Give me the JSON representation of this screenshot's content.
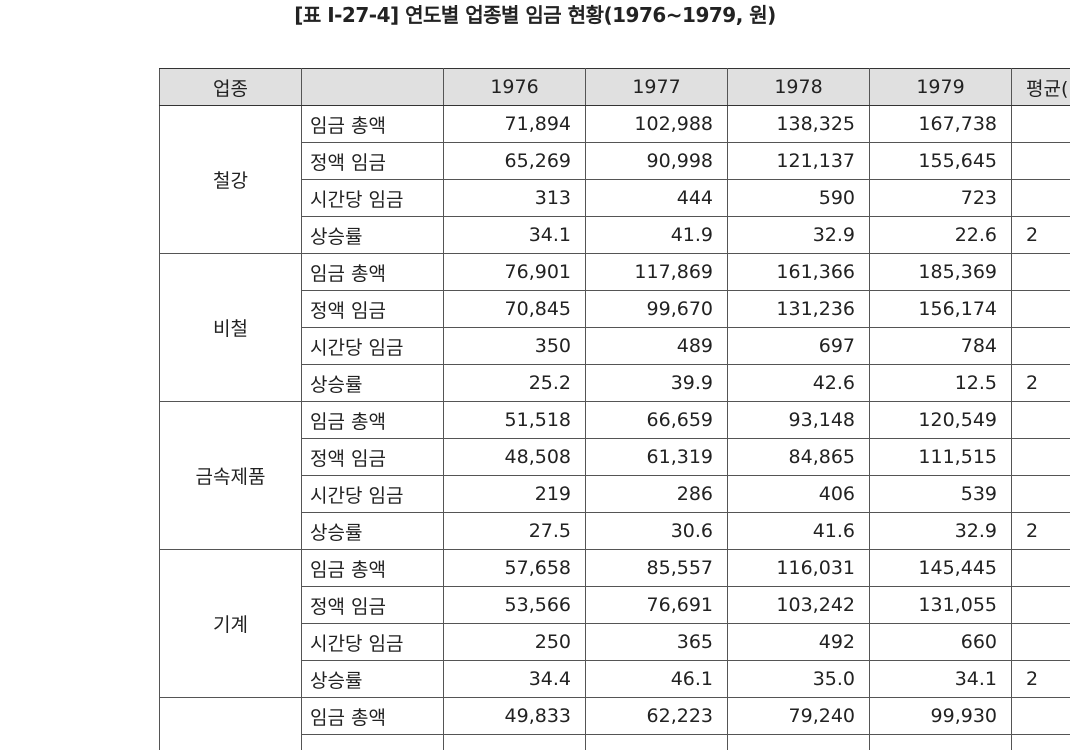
{
  "title": "[표 Ⅰ-27-4] 연도별 업종별 임금 현황(1976~1979, 원)",
  "table": {
    "headers": [
      "업종",
      "",
      "1976",
      "1977",
      "1978",
      "1979",
      "평균("
    ],
    "groups": [
      {
        "industry": "철강",
        "rows": [
          {
            "item": "임금 총액",
            "values": [
              "71,894",
              "102,988",
              "138,325",
              "167,738"
            ],
            "avg": ""
          },
          {
            "item": "정액 임금",
            "values": [
              "65,269",
              "90,998",
              "121,137",
              "155,645"
            ],
            "avg": ""
          },
          {
            "item": "시간당 임금",
            "values": [
              "313",
              "444",
              "590",
              "723"
            ],
            "avg": ""
          },
          {
            "item": "상승률",
            "values": [
              "34.1",
              "41.9",
              "32.9",
              "22.6"
            ],
            "avg": "2"
          }
        ]
      },
      {
        "industry": "비철",
        "rows": [
          {
            "item": "임금 총액",
            "values": [
              "76,901",
              "117,869",
              "161,366",
              "185,369"
            ],
            "avg": ""
          },
          {
            "item": "정액 임금",
            "values": [
              "70,845",
              "99,670",
              "131,236",
              "156,174"
            ],
            "avg": ""
          },
          {
            "item": "시간당 임금",
            "values": [
              "350",
              "489",
              "697",
              "784"
            ],
            "avg": ""
          },
          {
            "item": "상승률",
            "values": [
              "25.2",
              "39.9",
              "42.6",
              "12.5"
            ],
            "avg": "2"
          }
        ]
      },
      {
        "industry": "금속제품",
        "rows": [
          {
            "item": "임금 총액",
            "values": [
              "51,518",
              "66,659",
              "93,148",
              "120,549"
            ],
            "avg": ""
          },
          {
            "item": "정액 임금",
            "values": [
              "48,508",
              "61,319",
              "84,865",
              "111,515"
            ],
            "avg": ""
          },
          {
            "item": "시간당 임금",
            "values": [
              "219",
              "286",
              "406",
              "539"
            ],
            "avg": ""
          },
          {
            "item": "상승률",
            "values": [
              "27.5",
              "30.6",
              "41.6",
              "32.9"
            ],
            "avg": "2"
          }
        ]
      },
      {
        "industry": "기계",
        "rows": [
          {
            "item": "임금 총액",
            "values": [
              "57,658",
              "85,557",
              "116,031",
              "145,445"
            ],
            "avg": ""
          },
          {
            "item": "정액 임금",
            "values": [
              "53,566",
              "76,691",
              "103,242",
              "131,055"
            ],
            "avg": ""
          },
          {
            "item": "시간당 임금",
            "values": [
              "250",
              "365",
              "492",
              "660"
            ],
            "avg": ""
          },
          {
            "item": "상승률",
            "values": [
              "34.4",
              "46.1",
              "35.0",
              "34.1"
            ],
            "avg": "2"
          }
        ]
      },
      {
        "industry": "",
        "rows": [
          {
            "item": "임금 총액",
            "values": [
              "49,833",
              "62,223",
              "79,240",
              "99,930"
            ],
            "avg": ""
          },
          {
            "item": "",
            "values": [
              "",
              "",
              "",
              ""
            ],
            "avg": ""
          }
        ]
      }
    ]
  }
}
